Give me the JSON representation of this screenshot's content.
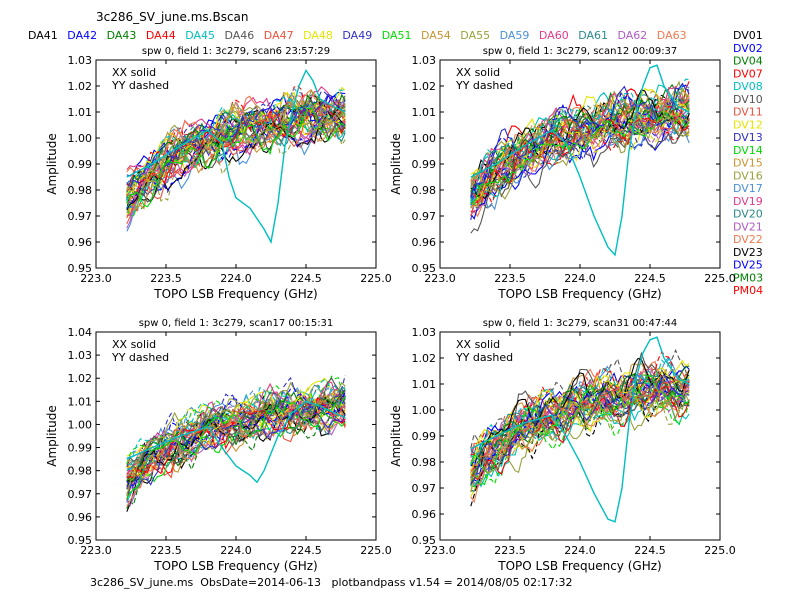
{
  "figure": {
    "title": "3c286_SV_june.ms.Bscan",
    "footer": "3c286_SV_june.ms  ObsDate=2014-06-13   plotbandpass v1.54 = 2014/08/05 02:17:32",
    "top_legend": [
      {
        "label": "DA41",
        "color": "#000000"
      },
      {
        "label": "DA42",
        "color": "#0000ff"
      },
      {
        "label": "DA43",
        "color": "#007f00"
      },
      {
        "label": "DA44",
        "color": "#ff0000"
      },
      {
        "label": "DA45",
        "color": "#00bfbf"
      },
      {
        "label": "DA46",
        "color": "#555555"
      },
      {
        "label": "DA47",
        "color": "#e9533d"
      },
      {
        "label": "DA48",
        "color": "#e5e500"
      },
      {
        "label": "DA49",
        "color": "#3030c8"
      },
      {
        "label": "DA51",
        "color": "#00dd00"
      },
      {
        "label": "DA54",
        "color": "#c89632"
      },
      {
        "label": "DA55",
        "color": "#9aa03c"
      },
      {
        "label": "DA59",
        "color": "#4a90d9"
      },
      {
        "label": "DA60",
        "color": "#e23b8a"
      },
      {
        "label": "DA61",
        "color": "#2a8a8a"
      },
      {
        "label": "DA62",
        "color": "#b05cc6"
      },
      {
        "label": "DA63",
        "color": "#f07a50"
      }
    ],
    "right_legend": [
      {
        "label": "DV01",
        "color": "#000000"
      },
      {
        "label": "DV02",
        "color": "#0000ff"
      },
      {
        "label": "DV04",
        "color": "#007f00"
      },
      {
        "label": "DV07",
        "color": "#ff0000"
      },
      {
        "label": "DV08",
        "color": "#00bfbf"
      },
      {
        "label": "DV10",
        "color": "#555555"
      },
      {
        "label": "DV11",
        "color": "#e9533d"
      },
      {
        "label": "DV12",
        "color": "#e5e500"
      },
      {
        "label": "DV13",
        "color": "#3030c8"
      },
      {
        "label": "DV14",
        "color": "#00dd00"
      },
      {
        "label": "DV15",
        "color": "#c89632"
      },
      {
        "label": "DV16",
        "color": "#9aa03c"
      },
      {
        "label": "DV17",
        "color": "#4a90d9"
      },
      {
        "label": "DV19",
        "color": "#e23b8a"
      },
      {
        "label": "DV20",
        "color": "#2a8a8a"
      },
      {
        "label": "DV21",
        "color": "#b05cc6"
      },
      {
        "label": "DV22",
        "color": "#f07a50"
      },
      {
        "label": "DV23",
        "color": "#000000"
      },
      {
        "label": "DV25",
        "color": "#0000ff"
      },
      {
        "label": "PM03",
        "color": "#007f00"
      },
      {
        "label": "PM04",
        "color": "#ff0000"
      }
    ]
  },
  "chart_data": [
    {
      "type": "line",
      "title": "spw 0,  field 1: 3c279,  scan6  23:57:29",
      "xlabel": "TOPO LSB Frequency (GHz)",
      "ylabel": "Amplitude",
      "xlim": [
        223.0,
        225.0
      ],
      "ylim": [
        0.95,
        1.03
      ],
      "xticks": [
        "223.0",
        "223.5",
        "224.0",
        "224.5",
        "225.0"
      ],
      "yticks": [
        "0.95",
        "0.96",
        "0.97",
        "0.98",
        "0.99",
        "1.00",
        "1.01",
        "1.02",
        "1.03"
      ],
      "annotation": [
        "XX solid",
        "YY dashed"
      ],
      "highlight": {
        "name": "DA45",
        "color": "#00bfbf",
        "x": [
          223.22,
          223.4,
          223.6,
          223.8,
          223.9,
          223.95,
          224.0,
          224.1,
          224.2,
          224.25,
          224.3,
          224.35,
          224.4,
          224.45,
          224.5,
          224.55,
          224.6,
          224.7,
          224.78
        ],
        "y": [
          0.985,
          0.99,
          0.997,
          1.003,
          0.998,
          0.985,
          0.977,
          0.973,
          0.965,
          0.96,
          0.975,
          0.997,
          1.01,
          1.02,
          1.026,
          1.022,
          1.015,
          1.012,
          1.01
        ]
      }
    },
    {
      "type": "line",
      "title": "spw 0,  field 1: 3c279,  scan12  00:09:37",
      "xlabel": "TOPO LSB Frequency (GHz)",
      "ylabel": "Amplitude",
      "xlim": [
        223.0,
        225.0
      ],
      "ylim": [
        0.95,
        1.03
      ],
      "xticks": [
        "223.0",
        "223.5",
        "224.0",
        "224.5",
        "225.0"
      ],
      "yticks": [
        "0.95",
        "0.96",
        "0.97",
        "0.98",
        "0.99",
        "1.00",
        "1.01",
        "1.02",
        "1.03"
      ],
      "annotation": [
        "XX solid",
        "YY dashed"
      ],
      "highlight": {
        "name": "DA45",
        "color": "#00bfbf",
        "x": [
          223.22,
          223.4,
          223.6,
          223.8,
          223.9,
          224.0,
          224.1,
          224.2,
          224.25,
          224.3,
          224.35,
          224.4,
          224.45,
          224.5,
          224.55,
          224.6,
          224.7,
          224.78
        ],
        "y": [
          0.985,
          0.99,
          0.997,
          1.003,
          0.998,
          0.985,
          0.97,
          0.958,
          0.955,
          0.97,
          0.995,
          1.01,
          1.02,
          1.027,
          1.028,
          1.02,
          1.012,
          1.01
        ]
      }
    },
    {
      "type": "line",
      "title": "spw 0,  field 1: 3c279,  scan17  00:15:31",
      "xlabel": "TOPO LSB Frequency (GHz)",
      "ylabel": "Amplitude",
      "xlim": [
        223.0,
        225.0
      ],
      "ylim": [
        0.95,
        1.04
      ],
      "xticks": [
        "223.0",
        "223.5",
        "224.0",
        "224.5",
        "225.0"
      ],
      "yticks": [
        "0.95",
        "0.96",
        "0.97",
        "0.98",
        "0.99",
        "1.00",
        "1.01",
        "1.02",
        "1.03",
        "1.04"
      ],
      "annotation": [
        "XX solid",
        "YY dashed"
      ],
      "highlight": {
        "name": "DA45",
        "color": "#00bfbf",
        "x": [
          223.22,
          223.4,
          223.6,
          223.8,
          223.9,
          224.0,
          224.1,
          224.15,
          224.2,
          224.3,
          224.4,
          224.5,
          224.6,
          224.7,
          224.78
        ],
        "y": [
          0.985,
          0.99,
          0.995,
          0.999,
          0.99,
          0.982,
          0.978,
          0.975,
          0.98,
          0.995,
          1.005,
          1.01,
          1.008,
          1.005,
          1.003
        ]
      }
    },
    {
      "type": "line",
      "title": "spw 0,  field 1: 3c279,  scan31  00:47:44",
      "xlabel": "TOPO LSB Frequency (GHz)",
      "ylabel": "Amplitude",
      "xlim": [
        223.0,
        225.0
      ],
      "ylim": [
        0.95,
        1.03
      ],
      "xticks": [
        "223.0",
        "223.5",
        "224.0",
        "224.5",
        "225.0"
      ],
      "yticks": [
        "0.95",
        "0.96",
        "0.97",
        "0.98",
        "0.99",
        "1.00",
        "1.01",
        "1.02",
        "1.03"
      ],
      "annotation": [
        "XX solid",
        "YY dashed"
      ],
      "highlight": {
        "name": "DA45",
        "color": "#00bfbf",
        "x": [
          223.22,
          223.4,
          223.6,
          223.8,
          223.9,
          224.0,
          224.1,
          224.2,
          224.25,
          224.3,
          224.35,
          224.4,
          224.45,
          224.5,
          224.55,
          224.6,
          224.7,
          224.78
        ],
        "y": [
          0.985,
          0.99,
          0.995,
          0.998,
          0.99,
          0.98,
          0.968,
          0.958,
          0.957,
          0.97,
          0.995,
          1.012,
          1.022,
          1.027,
          1.028,
          1.02,
          1.012,
          1.01
        ]
      }
    }
  ]
}
